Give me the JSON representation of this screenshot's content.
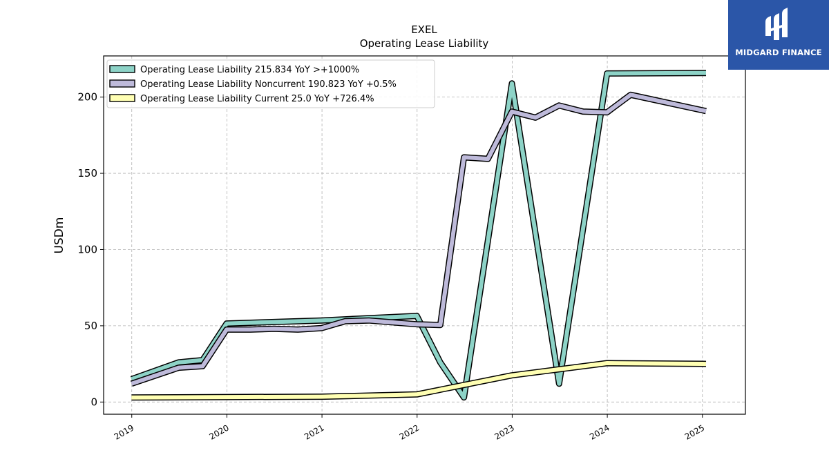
{
  "chart_data": {
    "type": "line",
    "title": "EXEL",
    "subtitle": "Operating Lease Liability",
    "ylabel": "USDm",
    "xlabel": "",
    "ylim": [
      -8,
      227
    ],
    "xlim": [
      "2018-09-15",
      "2025-06-15"
    ],
    "yticks": [
      0,
      50,
      100,
      150,
      200
    ],
    "xticks": [
      "2019",
      "2020",
      "2021",
      "2022",
      "2023",
      "2024",
      "2025"
    ],
    "grid": true,
    "legend_position": "top-left",
    "series": [
      {
        "name": "Operating Lease Liability  215.834 YoY >+1000%",
        "color": "#8dd3c7",
        "points": [
          [
            "2018-12-31",
            15.0
          ],
          [
            "2019-06-30",
            26.0
          ],
          [
            "2019-09-30",
            27.5
          ],
          [
            "2019-12-31",
            51.5
          ],
          [
            "2020-12-31",
            53.5
          ],
          [
            "2021-06-30",
            55.0
          ],
          [
            "2021-12-31",
            56.5
          ],
          [
            "2022-03-31",
            26.0
          ],
          [
            "2022-06-30",
            3.0
          ],
          [
            "2022-12-31",
            209.0
          ],
          [
            "2023-06-30",
            12.0
          ],
          [
            "2023-12-31",
            215.5
          ],
          [
            "2025-01-15",
            215.834
          ]
        ]
      },
      {
        "name": "Operating Lease Liability Noncurrent  190.823 YoY +0.5%",
        "color": "#bebada",
        "points": [
          [
            "2018-12-31",
            12.0
          ],
          [
            "2019-06-30",
            22.5
          ],
          [
            "2019-09-30",
            23.5
          ],
          [
            "2019-12-31",
            47.5
          ],
          [
            "2020-03-31",
            47.5
          ],
          [
            "2020-06-30",
            48.0
          ],
          [
            "2020-09-30",
            47.5
          ],
          [
            "2020-12-31",
            48.5
          ],
          [
            "2021-03-31",
            53.0
          ],
          [
            "2021-06-30",
            53.5
          ],
          [
            "2021-12-31",
            51.0
          ],
          [
            "2022-03-31",
            50.5
          ],
          [
            "2022-06-30",
            160.5
          ],
          [
            "2022-09-30",
            159.5
          ],
          [
            "2022-12-31",
            190.5
          ],
          [
            "2023-03-31",
            186.5
          ],
          [
            "2023-06-30",
            194.5
          ],
          [
            "2023-09-30",
            190.5
          ],
          [
            "2023-12-31",
            190.0
          ],
          [
            "2024-03-31",
            201.5
          ],
          [
            "2025-01-15",
            190.823
          ]
        ]
      },
      {
        "name": "Operating Lease Liability Current  25.0 YoY +726.4%",
        "color": "#ffffb3",
        "points": [
          [
            "2018-12-31",
            3.0
          ],
          [
            "2020-12-31",
            3.5
          ],
          [
            "2021-12-31",
            5.0
          ],
          [
            "2022-12-31",
            17.5
          ],
          [
            "2023-12-31",
            25.5
          ],
          [
            "2025-01-15",
            25.0
          ]
        ]
      }
    ]
  },
  "logo": {
    "text": "MIDGARD FINANCE",
    "color": "#2b56a8"
  }
}
